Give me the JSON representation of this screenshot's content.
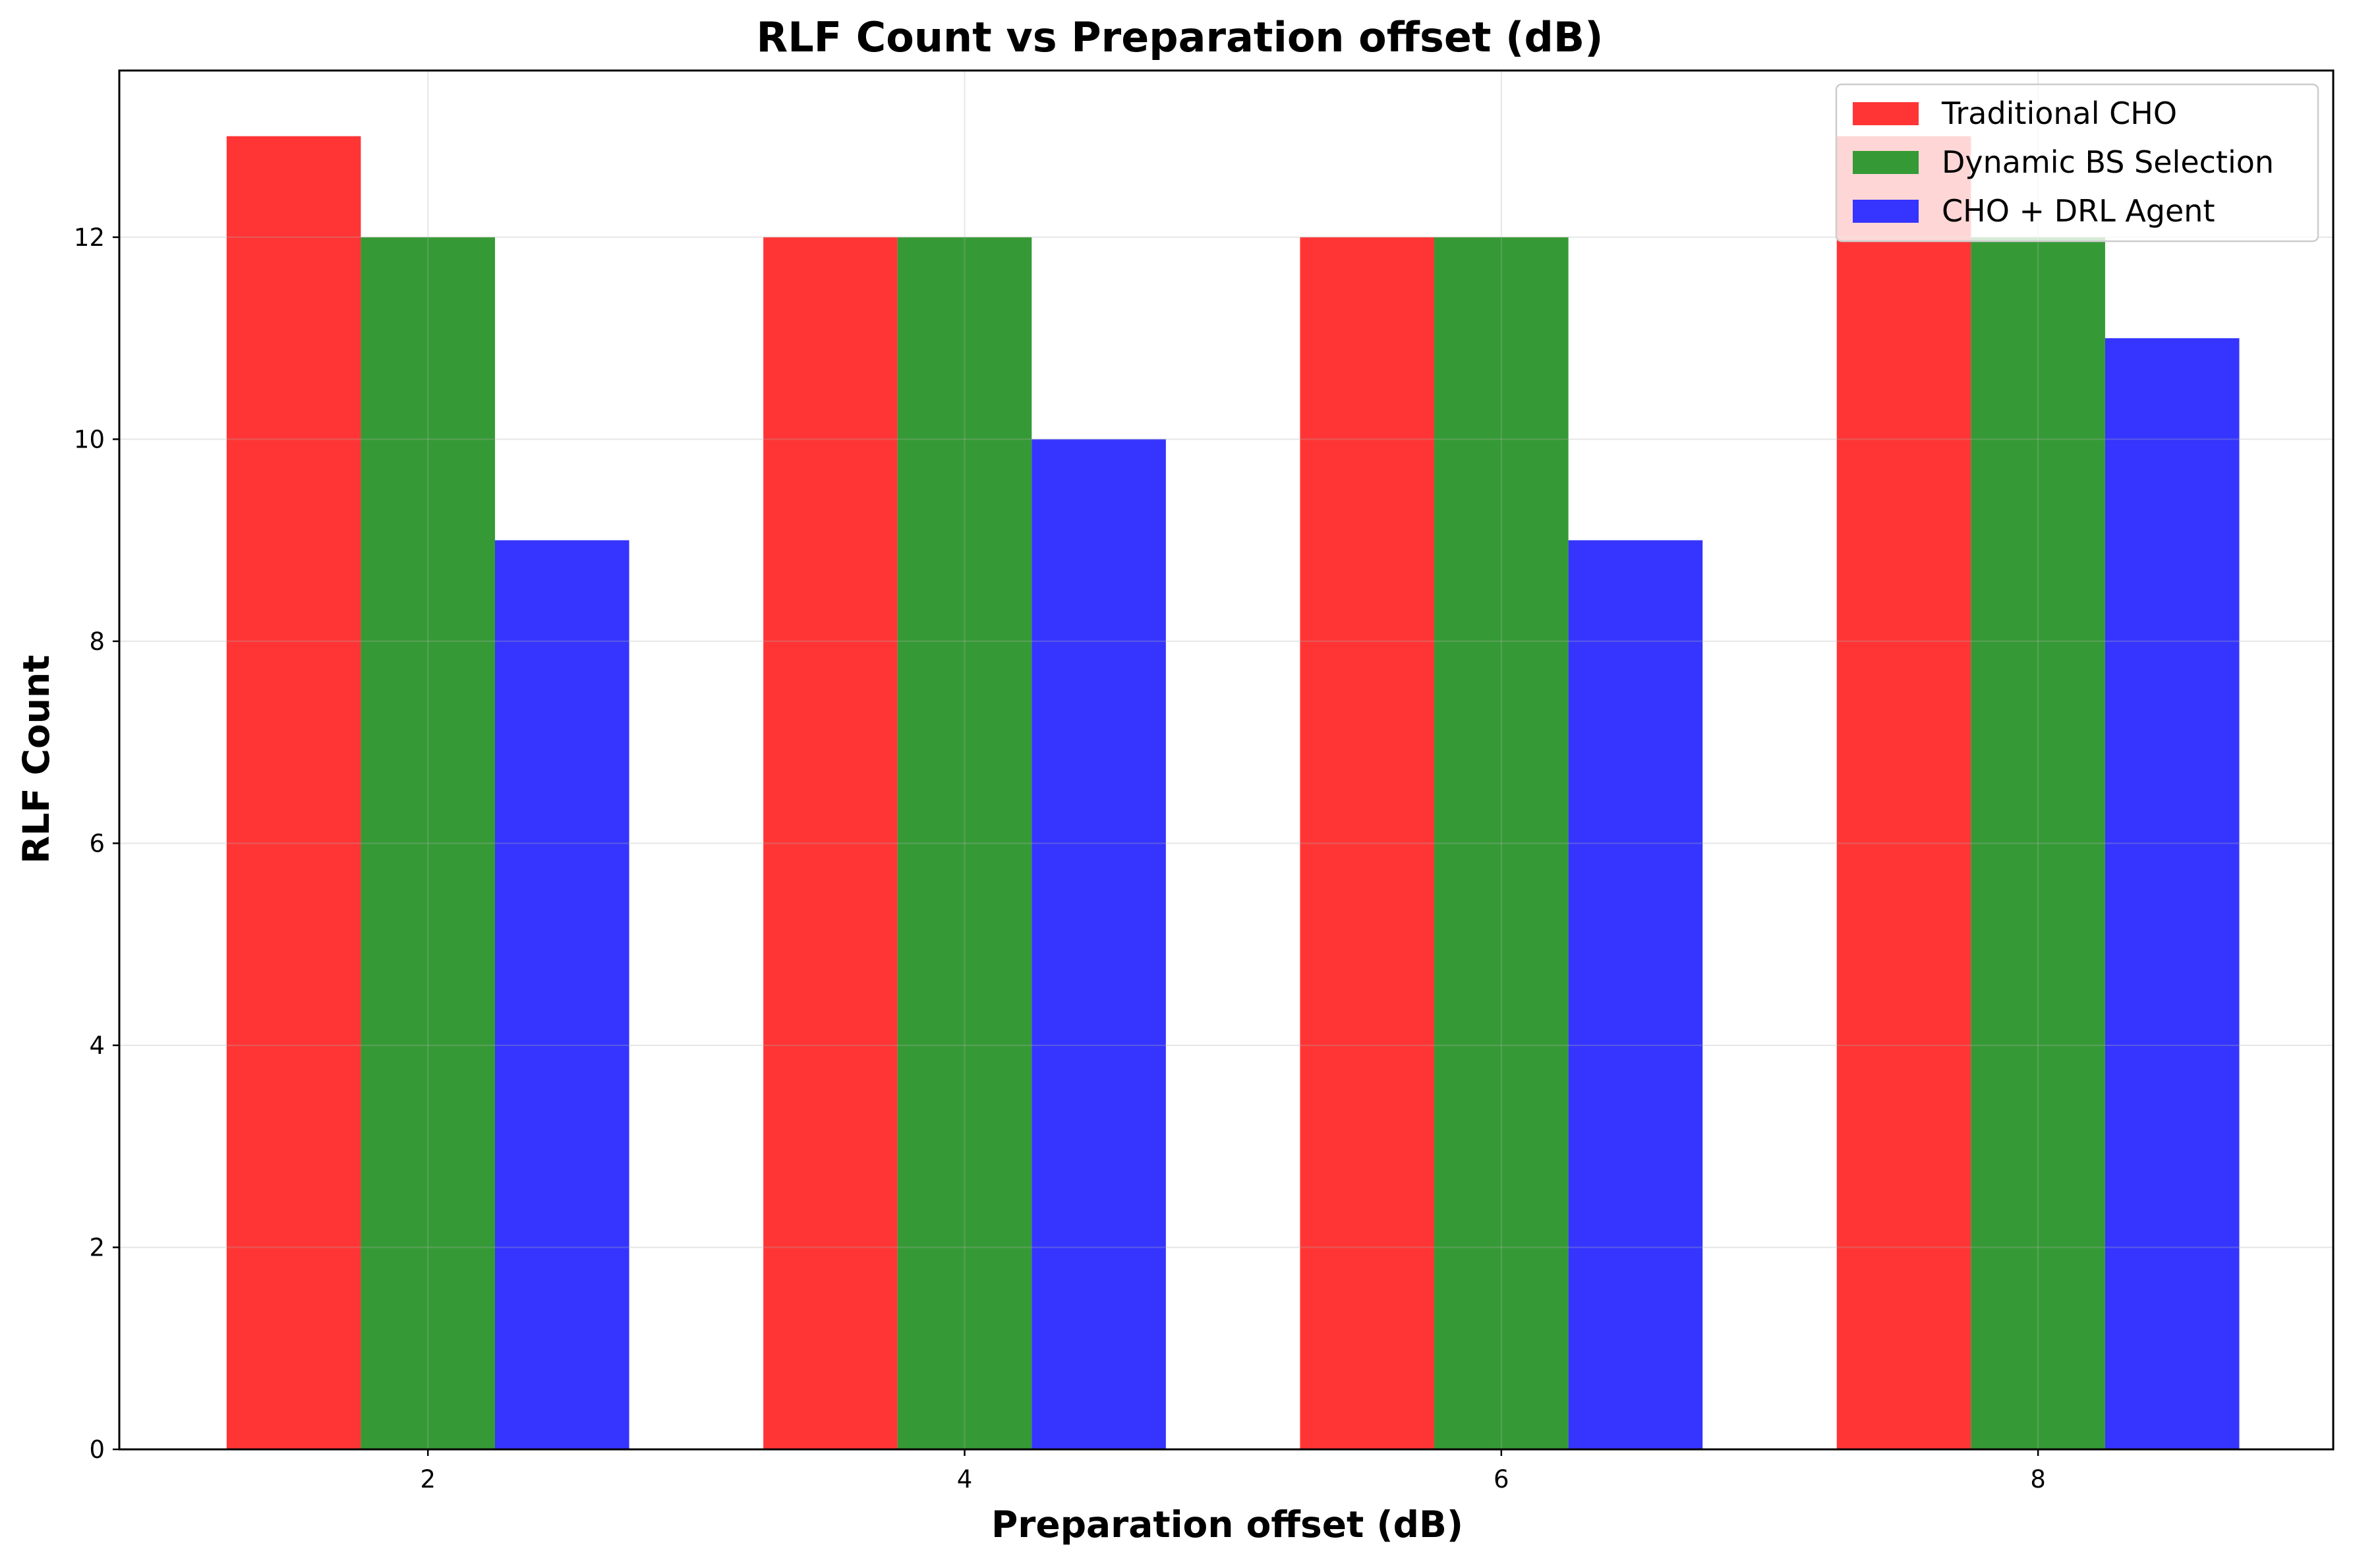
{
  "chart_data": {
    "type": "bar",
    "title": "RLF Count vs Preparation offset (dB)",
    "xlabel": "Preparation offset (dB)",
    "ylabel": "RLF Count",
    "categories": [
      "2",
      "4",
      "6",
      "8"
    ],
    "x_values": [
      2,
      4,
      6,
      8
    ],
    "xlim": [
      0.85,
      9.1
    ],
    "ylim": [
      0,
      13.65
    ],
    "yticks": [
      0,
      2,
      4,
      6,
      8,
      10,
      12
    ],
    "bar_width_data": 0.5,
    "grid": true,
    "legend_position": "top-right",
    "series": [
      {
        "name": "Traditional CHO",
        "color": "#ff3333",
        "values": [
          13,
          12,
          12,
          13
        ]
      },
      {
        "name": "Dynamic BS Selection",
        "color": "#339933",
        "values": [
          12,
          12,
          12,
          12
        ]
      },
      {
        "name": "CHO + DRL Agent",
        "color": "#3333ff",
        "values": [
          9,
          10,
          9,
          11
        ]
      }
    ]
  }
}
